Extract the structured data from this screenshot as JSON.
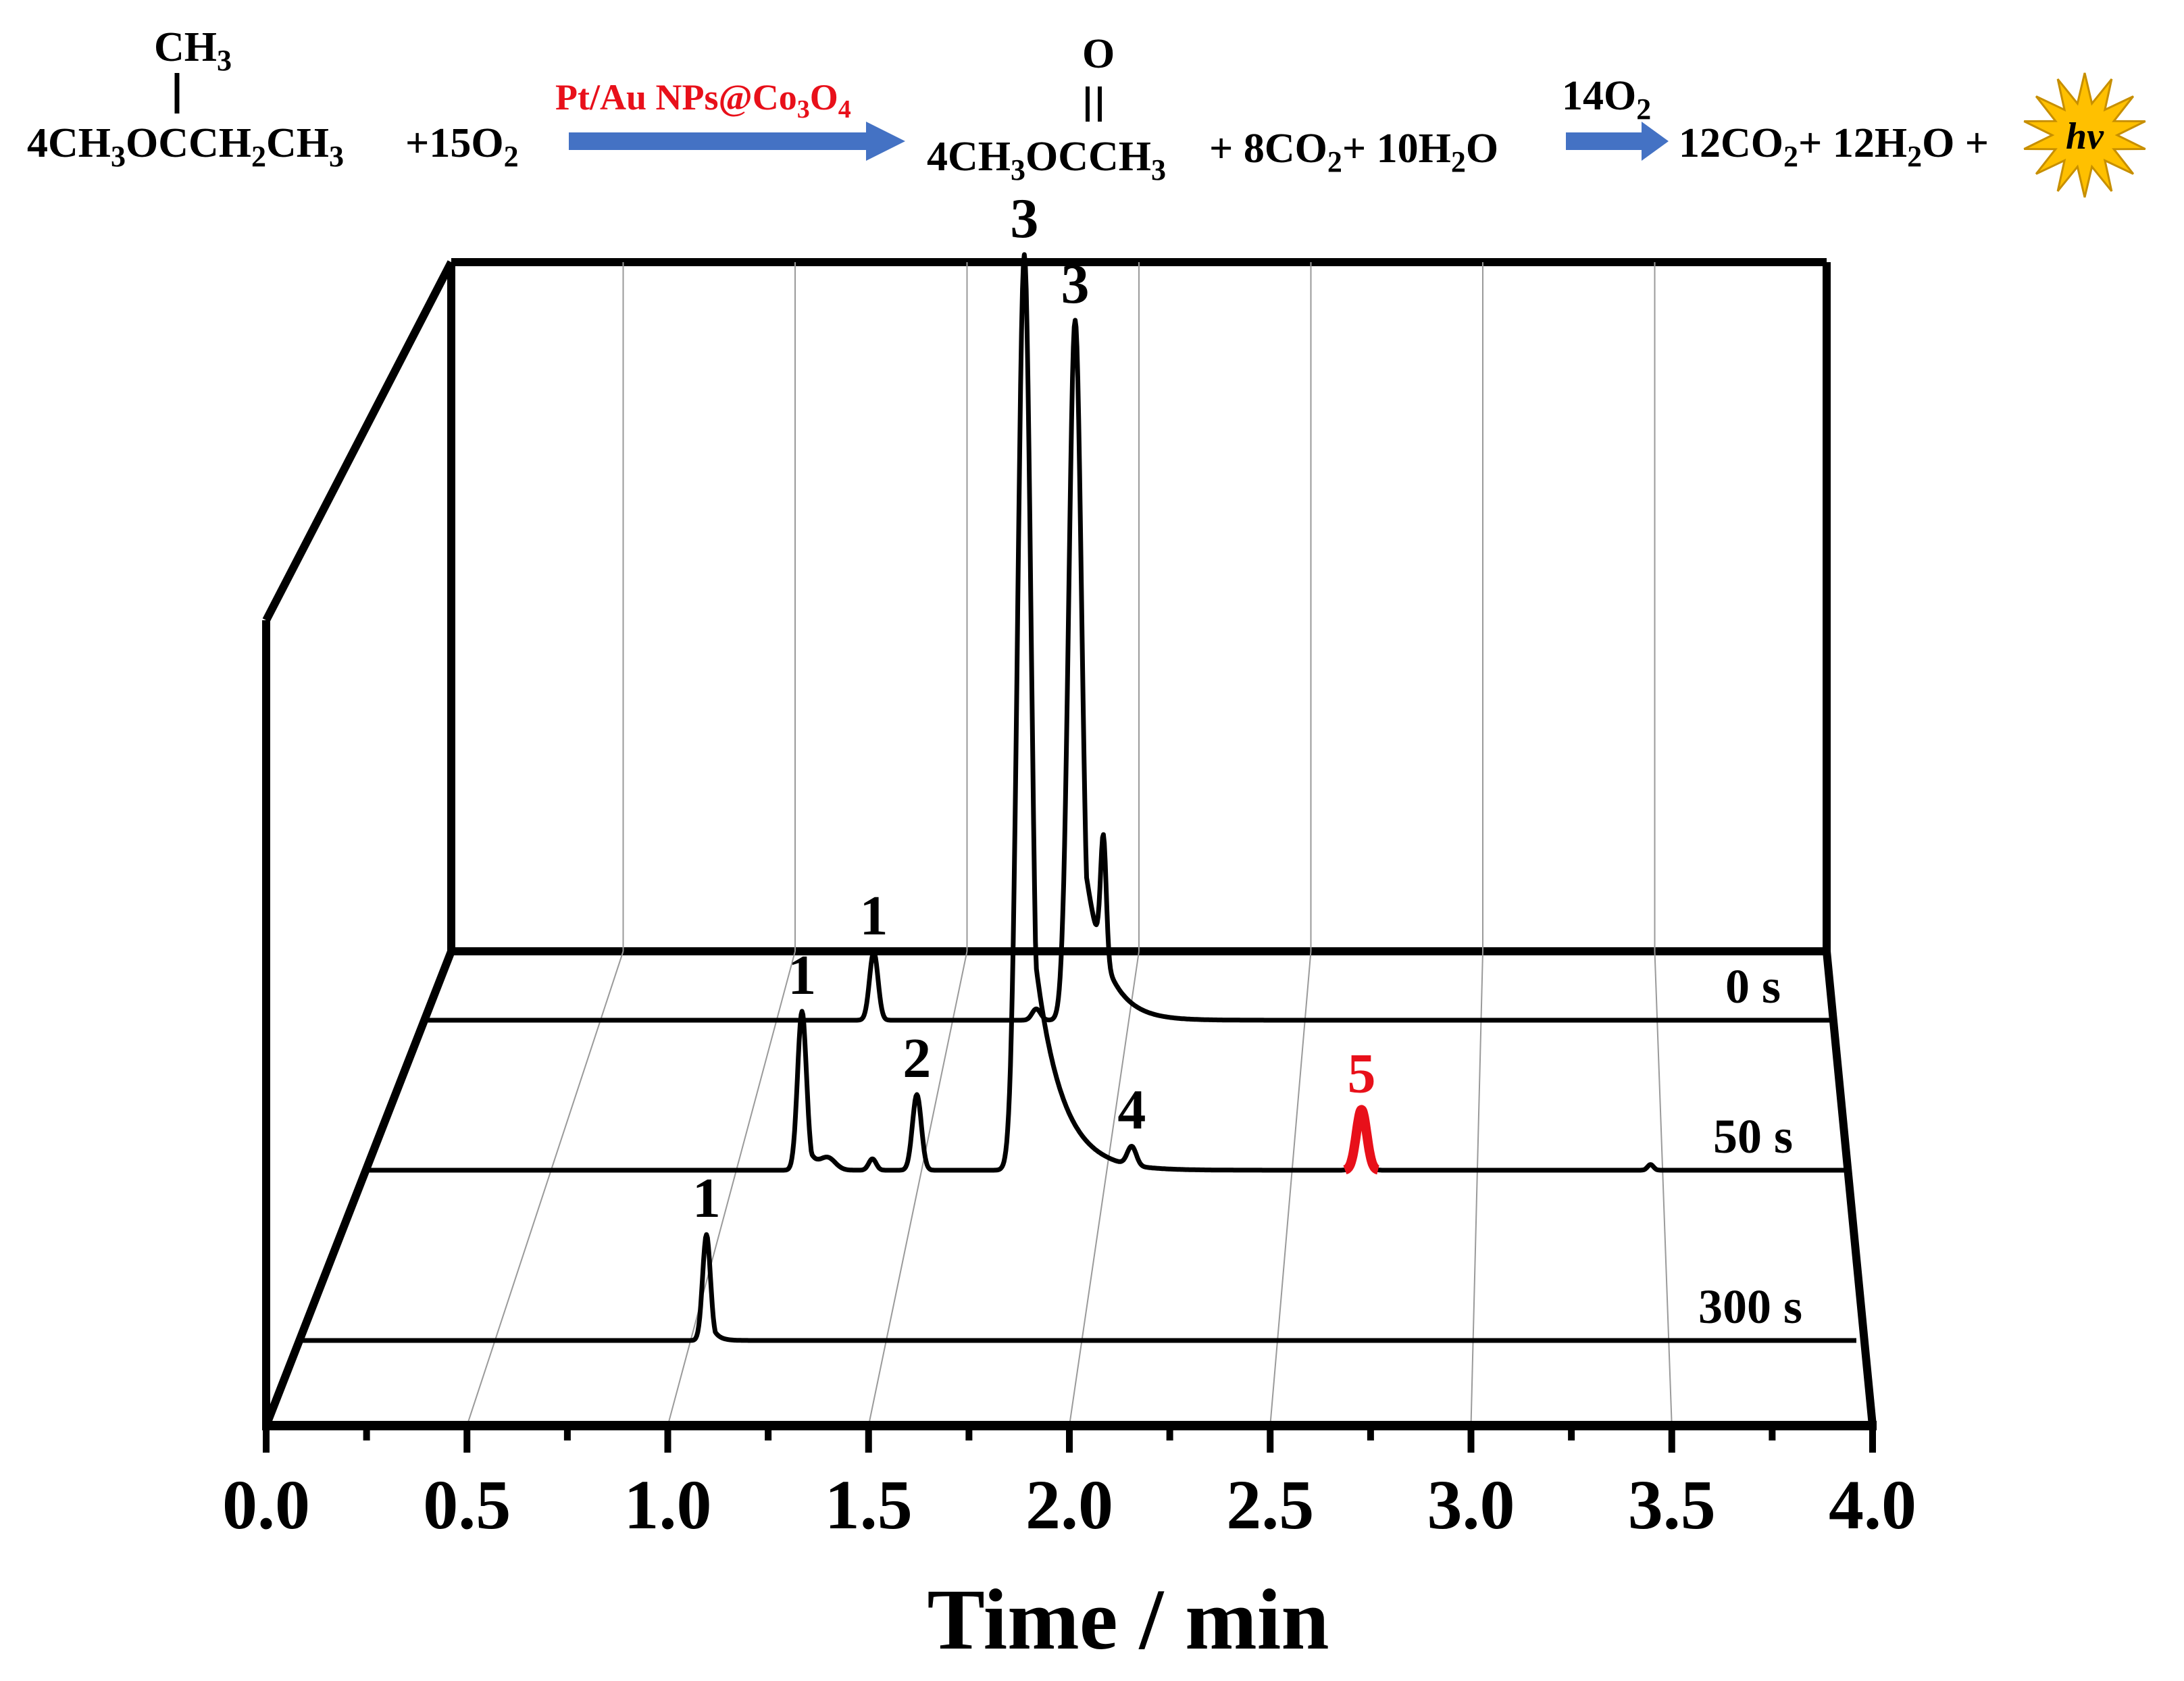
{
  "equation": {
    "reactant_branch": "CH",
    "reactant_branch_sub": "3",
    "reactant_main": [
      "4CH",
      "3",
      "OCCH",
      "2",
      "CH",
      "3"
    ],
    "plus_o2_1": [
      "+15O",
      "2"
    ],
    "catalyst": [
      "Pt/Au NPs@Co",
      "3",
      "O",
      "4"
    ],
    "product_oxygen": "O",
    "product_main": [
      "4CH",
      "3",
      "OCCH",
      "3"
    ],
    "product_rest": [
      "+ 8CO",
      "2",
      "+ 10H",
      "2",
      "O"
    ],
    "o2_2": [
      "14O",
      "2"
    ],
    "final": [
      "12CO",
      "2",
      "+ 12H",
      "2",
      "O +"
    ],
    "hv": "hν",
    "colors": {
      "catalyst": "#e8101a",
      "arrow": "#4472c4",
      "star": "#ffc000"
    }
  },
  "chart_data": {
    "type": "line",
    "title": "",
    "xlabel": "Time / min",
    "ylabel": "",
    "xlim": [
      0.0,
      4.0
    ],
    "x_ticks": [
      "0.0",
      "0.5",
      "1.0",
      "1.5",
      "2.0",
      "2.5",
      "3.0",
      "3.5",
      "4.0"
    ],
    "grid": true,
    "style": "3D stacked chromatograms (waterfall)",
    "series": [
      {
        "name": "0 s",
        "label": "0 s",
        "depth": 2,
        "peaks": [
          {
            "label": "1",
            "time": 1.28,
            "height": 0.18,
            "width": 0.012
          },
          {
            "label": "",
            "time": 1.74,
            "height": 0.03,
            "width": 0.012
          },
          {
            "label": "3",
            "time": 1.85,
            "height": 1.85,
            "width": 0.018,
            "tail": 0.06
          },
          {
            "label": "",
            "time": 1.93,
            "height": 0.32,
            "width": 0.008
          }
        ]
      },
      {
        "name": "50 s",
        "label": "50 s",
        "depth": 1,
        "peaks": [
          {
            "label": "1",
            "time": 1.18,
            "height": 0.42,
            "width": 0.012,
            "tail": 0.02
          },
          {
            "label": "",
            "time": 1.25,
            "height": 0.03,
            "width": 0.02
          },
          {
            "label": "",
            "time": 1.37,
            "height": 0.03,
            "width": 0.01
          },
          {
            "label": "2",
            "time": 1.49,
            "height": 0.2,
            "width": 0.012
          },
          {
            "label": "3",
            "time": 1.78,
            "height": 2.42,
            "width": 0.018,
            "tail": 0.07
          },
          {
            "label": "4",
            "time": 2.07,
            "height": 0.05,
            "width": 0.012
          },
          {
            "label": "5",
            "time": 2.69,
            "height": 0.16,
            "width": 0.014,
            "highlight": "#e8101a"
          },
          {
            "label": "",
            "time": 3.47,
            "height": 0.015,
            "width": 0.008
          }
        ]
      },
      {
        "name": "300 s",
        "label": "300 s",
        "depth": 0,
        "peaks": [
          {
            "label": "1",
            "time": 1.05,
            "height": 0.28,
            "width": 0.01,
            "tail": 0.015
          }
        ]
      }
    ]
  }
}
